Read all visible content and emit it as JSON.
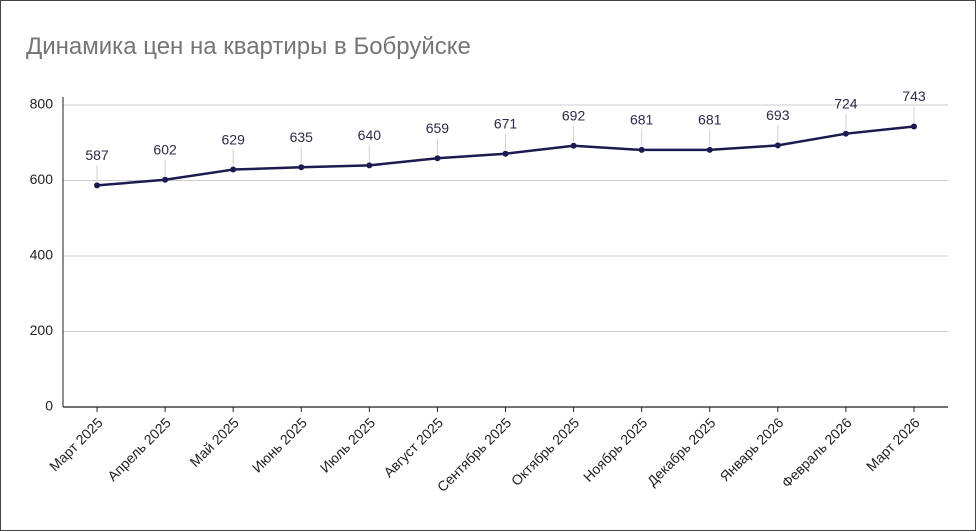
{
  "chart_data": {
    "type": "line",
    "title": "Динамика цен на квартиры в Бобруйске",
    "categories": [
      "Март 2025",
      "Апрель 2025",
      "Май 2025",
      "Июнь 2025",
      "Июль 2025",
      "Август 2025",
      "Сентябрь 2025",
      "Октябрь 2025",
      "Ноябрь 2025",
      "Декабрь 2025",
      "Январь 2026",
      "Февраль 2026",
      "Март 2026"
    ],
    "values": [
      587,
      602,
      629,
      635,
      640,
      659,
      671,
      692,
      681,
      681,
      693,
      724,
      743
    ],
    "color": "#1c1a4f",
    "ylim": [
      0,
      800
    ],
    "yticks": [
      0,
      200,
      400,
      600,
      800
    ],
    "grid": true
  }
}
